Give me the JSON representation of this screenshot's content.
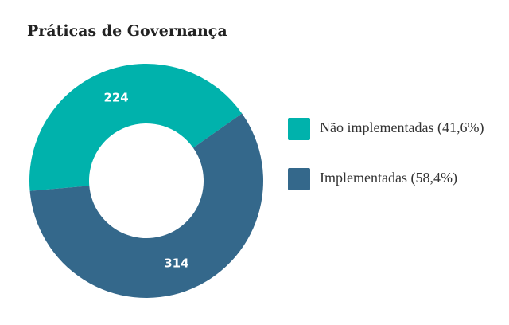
{
  "chart_data": {
    "type": "donut",
    "title": "Práticas de Governança",
    "categories": [
      "Não implementadas (41,6%)",
      "Implementadas (58,4%)"
    ],
    "values": [
      224,
      314
    ],
    "colors": [
      "#00b2ac",
      "#34688b"
    ]
  }
}
